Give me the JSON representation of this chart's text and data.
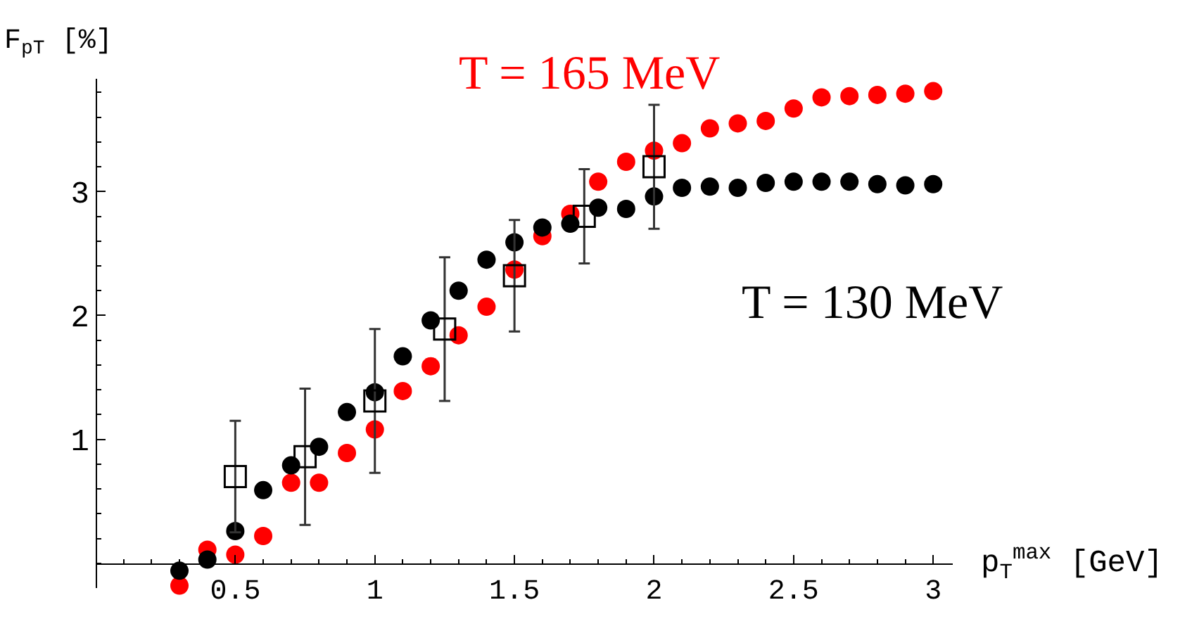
{
  "chart_data": {
    "type": "scatter",
    "xlabel": "p$_{T}$$^{max}$ [GeV]",
    "ylabel": "F$_{pT}$ [%]",
    "xlim": [
      0,
      3.07
    ],
    "ylim": [
      -0.2,
      3.91
    ],
    "xticks": [
      0.5,
      1,
      1.5,
      2,
      2.5,
      3
    ],
    "yticks": [
      1,
      2,
      3
    ],
    "grid": false,
    "legend": false,
    "series": [
      {
        "name": "T = 165 MeV",
        "color": "#ff0000",
        "marker": "circle",
        "x": [
          0.3,
          0.4,
          0.5,
          0.6,
          0.7,
          0.8,
          0.9,
          1.0,
          1.1,
          1.2,
          1.3,
          1.4,
          1.5,
          1.6,
          1.7,
          1.8,
          1.9,
          2.0,
          2.1,
          2.2,
          2.3,
          2.4,
          2.5,
          2.6,
          2.7,
          2.8,
          2.9,
          3.0
        ],
        "values": [
          -0.18,
          0.11,
          0.07,
          0.22,
          0.65,
          0.65,
          0.89,
          1.08,
          1.39,
          1.59,
          1.84,
          2.07,
          2.37,
          2.64,
          2.82,
          3.08,
          3.24,
          3.33,
          3.39,
          3.51,
          3.55,
          3.57,
          3.67,
          3.76,
          3.77,
          3.78,
          3.79,
          3.81
        ]
      },
      {
        "name": "T = 130 MeV",
        "color": "#000000",
        "marker": "circle",
        "x": [
          0.3,
          0.4,
          0.5,
          0.6,
          0.7,
          0.8,
          0.9,
          1.0,
          1.1,
          1.2,
          1.3,
          1.4,
          1.5,
          1.6,
          1.7,
          1.8,
          1.9,
          2.0,
          2.1,
          2.2,
          2.3,
          2.4,
          2.5,
          2.6,
          2.7,
          2.8,
          2.9,
          3.0
        ],
        "values": [
          -0.06,
          0.03,
          0.26,
          0.59,
          0.79,
          0.94,
          1.22,
          1.38,
          1.67,
          1.96,
          2.2,
          2.45,
          2.59,
          2.71,
          2.74,
          2.87,
          2.86,
          2.96,
          3.03,
          3.04,
          3.03,
          3.07,
          3.08,
          3.08,
          3.08,
          3.06,
          3.05,
          3.06
        ]
      },
      {
        "color": "#000000",
        "marker": "square",
        "x": [
          0.5,
          0.75,
          1.0,
          1.25,
          1.5,
          1.75,
          2.0
        ],
        "values": [
          0.7,
          0.86,
          1.31,
          1.89,
          2.32,
          2.8,
          3.2
        ],
        "errors": [
          0.45,
          0.55,
          0.58,
          0.58,
          0.45,
          0.38,
          0.5
        ]
      }
    ]
  }
}
